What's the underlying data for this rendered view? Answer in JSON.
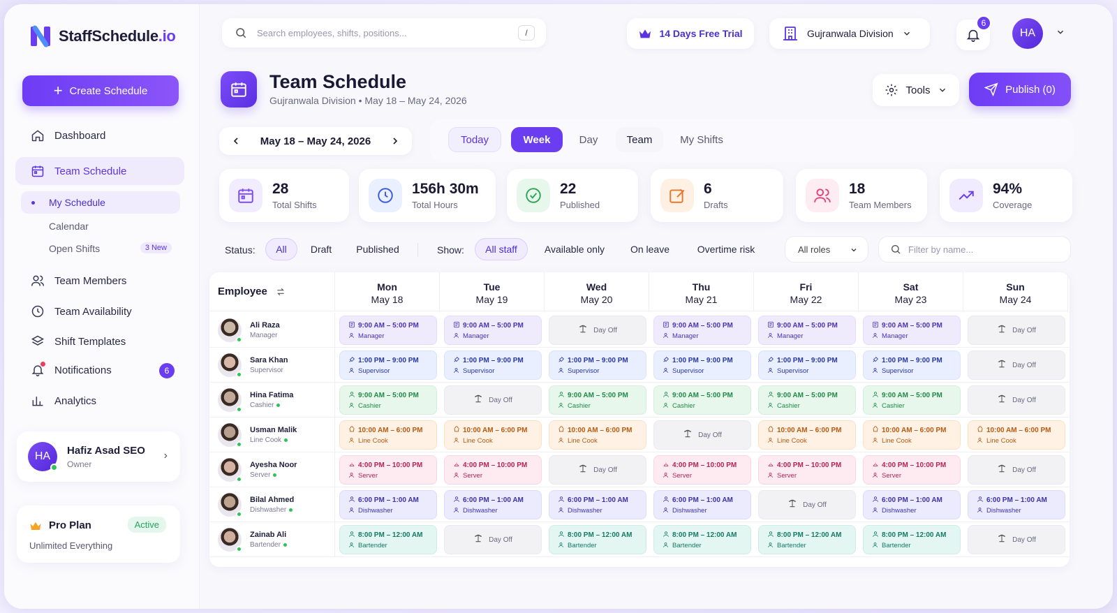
{
  "app": {
    "name_prefix": "StaffSchedule",
    "name_suffix": ".io"
  },
  "sidebar": {
    "create_label": "Create Schedule",
    "items": [
      {
        "label": "Dashboard",
        "icon": "home-icon"
      },
      {
        "label": "Team Schedule",
        "icon": "calendar-icon"
      },
      {
        "label": "Team Members",
        "icon": "users-icon"
      },
      {
        "label": "Team Availability",
        "icon": "clock-icon"
      },
      {
        "label": "Shift Templates",
        "icon": "layers-icon"
      },
      {
        "label": "Notifications",
        "icon": "bell-icon",
        "badge": "6"
      },
      {
        "label": "Analytics",
        "icon": "bar-chart-icon"
      }
    ],
    "subitems": [
      {
        "label": "My Schedule"
      },
      {
        "label": "Calendar"
      },
      {
        "label": "Open Shifts",
        "badge": "3 New"
      }
    ],
    "user": {
      "initials": "HA",
      "name": "Hafiz Asad SEO",
      "role": "Owner"
    },
    "plan": {
      "title": "Pro Plan",
      "status": "Active",
      "subtitle": "Unlimited Everything"
    }
  },
  "topbar": {
    "search_placeholder": "Search employees, shifts, positions...",
    "search_shortcut": "/",
    "trial_label": "14 Days Free Trial",
    "division_label": "Gujranwala Division",
    "notif_count": "6",
    "avatar_initials": "HA"
  },
  "header": {
    "title": "Team Schedule",
    "subtitle": "Gujranwala Division • May 18 – May 24, 2026",
    "tools_label": "Tools",
    "publish_label": "Publish (0)"
  },
  "range": {
    "label": "May 18 – May 24, 2026"
  },
  "views": [
    "Today",
    "Week",
    "Day",
    "Team",
    "My Shifts"
  ],
  "stats": [
    {
      "value": "28",
      "label": "Total Shifts",
      "icon": "calendar-icon",
      "color": "#7b4bf6"
    },
    {
      "value": "156h 30m",
      "label": "Total Hours",
      "icon": "clock-icon",
      "color": "#3b5bdb"
    },
    {
      "value": "22",
      "label": "Published",
      "icon": "check-circle-icon",
      "color": "#2fa55a"
    },
    {
      "value": "6",
      "label": "Drafts",
      "icon": "edit-icon",
      "color": "#e8772e"
    },
    {
      "value": "18",
      "label": "Team Members",
      "icon": "users-icon",
      "color": "#e0457b"
    },
    {
      "value": "94%",
      "label": "Coverage",
      "icon": "trend-up-icon",
      "color": "#6a3df0"
    }
  ],
  "filters": {
    "status_label": "Status:",
    "status_options": [
      "All",
      "Draft",
      "Published"
    ],
    "show_label": "Show:",
    "show_options": [
      "All staff",
      "Available only",
      "On leave",
      "Overtime risk"
    ],
    "roles_label": "All roles",
    "name_placeholder": "Filter by name..."
  },
  "grid": {
    "employee_header": "Employee",
    "days": [
      {
        "name": "Mon",
        "date": "May 18"
      },
      {
        "name": "Tue",
        "date": "May 19"
      },
      {
        "name": "Wed",
        "date": "May 20"
      },
      {
        "name": "Thu",
        "date": "May 21"
      },
      {
        "name": "Fri",
        "date": "May 22"
      },
      {
        "name": "Sat",
        "date": "May 23"
      },
      {
        "name": "Sun",
        "date": "May 24"
      }
    ],
    "day_off_label": "Day Off",
    "employees": [
      {
        "name": "Ali Raza",
        "role": "Manager",
        "online_dot": false,
        "kind": "manager",
        "time": "9:00 AM – 5:00 PM",
        "shift_role": "Manager",
        "off": [
          2,
          6
        ]
      },
      {
        "name": "Sara Khan",
        "role": "Supervisor",
        "online_dot": false,
        "kind": "super",
        "time": "1:00 PM – 9:00 PM",
        "shift_role": "Supervisor",
        "off": [
          6
        ]
      },
      {
        "name": "Hina Fatima",
        "role": "Cashier",
        "online_dot": true,
        "kind": "cash",
        "time": "9:00 AM – 5:00 PM",
        "shift_role": "Cashier",
        "off": [
          1,
          6
        ]
      },
      {
        "name": "Usman Malik",
        "role": "Line Cook",
        "online_dot": true,
        "kind": "cook",
        "time": "10:00 AM – 6:00 PM",
        "shift_role": "Line Cook",
        "off": [
          3
        ]
      },
      {
        "name": "Ayesha Noor",
        "role": "Server",
        "online_dot": true,
        "kind": "serve",
        "time": "4:00 PM – 10:00 PM",
        "shift_role": "Server",
        "off": [
          2,
          6
        ]
      },
      {
        "name": "Bilal Ahmed",
        "role": "Dishwasher",
        "online_dot": true,
        "kind": "dish",
        "time": "6:00 PM – 1:00 AM",
        "shift_role": "Dishwasher",
        "off": [
          4
        ]
      },
      {
        "name": "Zainab Ali",
        "role": "Bartender",
        "online_dot": true,
        "kind": "bar",
        "time": "8:00 PM – 12:00 AM",
        "shift_role": "Bartender",
        "off": [
          1,
          6
        ]
      }
    ]
  }
}
